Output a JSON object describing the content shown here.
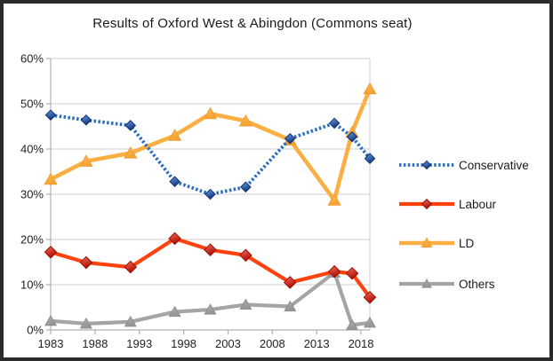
{
  "window": {
    "background": "#ffffff",
    "frame_color": "#2b2b2b"
  },
  "chart_data": {
    "type": "line",
    "title": "Results of Oxford West & Abingdon (Commons seat)",
    "xlabel": "",
    "ylabel": "",
    "xlim": [
      1983,
      2019
    ],
    "ylim": [
      0,
      60
    ],
    "grid": "horizontal",
    "legend_position": "right",
    "x": [
      1983,
      1987,
      1992,
      1997,
      2001,
      2005,
      2010,
      2015,
      2017,
      2019
    ],
    "series": [
      {
        "name": "Conservative",
        "color": "#2a6ec0",
        "line_style": "dotted",
        "marker": "diamond",
        "marker_fill_light": "#6aa0ea",
        "marker_fill_dark": "#13367b",
        "values": [
          47.5,
          46.4,
          45.2,
          32.8,
          30.0,
          31.6,
          42.3,
          45.7,
          42.7,
          37.9
        ]
      },
      {
        "name": "Labour",
        "color": "#ff420e",
        "line_style": "solid",
        "marker": "diamond",
        "marker_fill_light": "#f4705e",
        "marker_fill_dark": "#b00c03",
        "values": [
          17.2,
          14.9,
          13.9,
          20.2,
          17.7,
          16.5,
          10.5,
          12.9,
          12.5,
          7.2
        ]
      },
      {
        "name": "LD",
        "color": "#fbae42",
        "line_style": "solid",
        "marker": "triangle",
        "marker_fill_light": "#fcbd54",
        "marker_fill_dark": "#f5a232",
        "values": [
          33.3,
          37.3,
          39.1,
          43.0,
          47.8,
          46.2,
          42.0,
          28.7,
          43.7,
          53.3
        ]
      },
      {
        "name": "Others",
        "color": "#a5a5a5",
        "line_style": "solid",
        "marker": "triangle",
        "marker_fill_light": "#b2b2b2",
        "marker_fill_dark": "#949494",
        "values": [
          2.0,
          1.4,
          1.8,
          4.0,
          4.5,
          5.6,
          5.2,
          12.7,
          1.1,
          1.6
        ]
      }
    ],
    "x_ticks": [
      "1983",
      "1988",
      "1993",
      "1998",
      "2003",
      "2008",
      "2013",
      "2018"
    ],
    "x_tick_years": [
      1983,
      1988,
      1993,
      1998,
      2003,
      2008,
      2013,
      2018
    ],
    "y_ticks": [
      "0%",
      "10%",
      "20%",
      "30%",
      "40%",
      "50%",
      "60%"
    ],
    "y_tick_values": [
      0,
      10,
      20,
      30,
      40,
      50,
      60
    ],
    "axis_color": "#b0b0b0",
    "grid_color": "#cfcfcf",
    "tick_label_color": "#222222",
    "legend_text_color": "#1a1a1a"
  }
}
